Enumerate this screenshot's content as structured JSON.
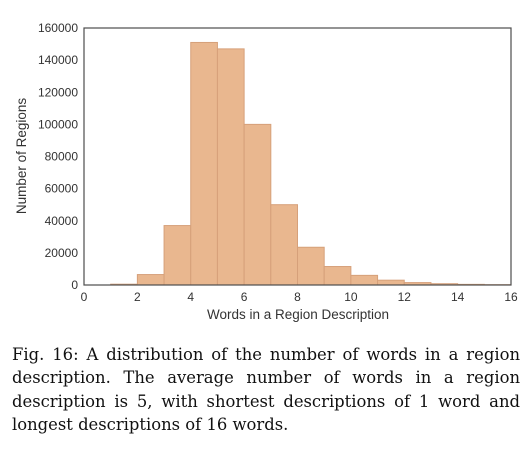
{
  "chart_data": {
    "type": "bar",
    "xlabel": "Words in a Region Description",
    "ylabel": "Number of Regions",
    "xlim": [
      0,
      16
    ],
    "ylim": [
      0,
      160000
    ],
    "xticks": [
      "0",
      "2",
      "4",
      "6",
      "8",
      "10",
      "12",
      "14",
      "16"
    ],
    "yticks": [
      "0",
      "20000",
      "40000",
      "60000",
      "80000",
      "100000",
      "120000",
      "140000",
      "160000"
    ],
    "bin_width": 1,
    "bins": [
      {
        "start": 1,
        "value": 500
      },
      {
        "start": 2,
        "value": 6500
      },
      {
        "start": 3,
        "value": 37000
      },
      {
        "start": 4,
        "value": 151000
      },
      {
        "start": 5,
        "value": 147000
      },
      {
        "start": 6,
        "value": 100000
      },
      {
        "start": 7,
        "value": 50000
      },
      {
        "start": 8,
        "value": 23500
      },
      {
        "start": 9,
        "value": 11500
      },
      {
        "start": 10,
        "value": 6000
      },
      {
        "start": 11,
        "value": 3000
      },
      {
        "start": 12,
        "value": 1500
      },
      {
        "start": 13,
        "value": 800
      },
      {
        "start": 14,
        "value": 400
      },
      {
        "start": 15,
        "value": 200
      }
    ],
    "bar_color": "#e9b78f",
    "bar_edge_color": "#d6a07a",
    "grid": false
  },
  "caption": "Fig. 16: A distribution of the number of words in a region description. The average number of words in a region description is 5, with shortest descriptions of 1 word and longest descriptions of 16 words."
}
